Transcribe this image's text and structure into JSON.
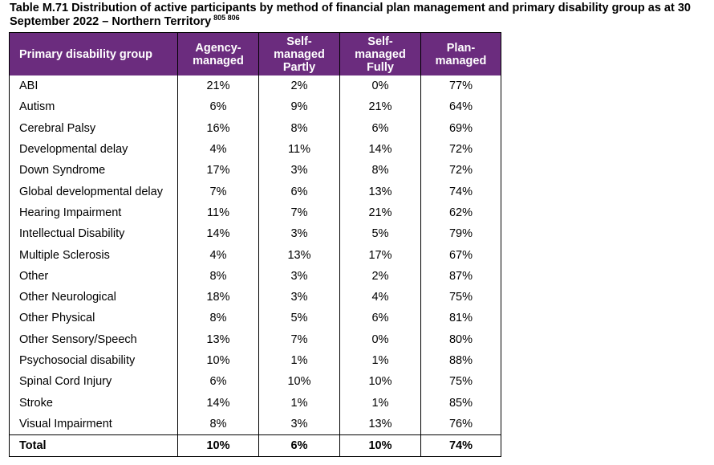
{
  "caption": {
    "text": "Table M.71 Distribution of active participants by method of financial plan management and primary disability group as at 30 September 2022 – Northern Territory",
    "footnotes": "805 806"
  },
  "table": {
    "headers": [
      [
        "Primary disability group"
      ],
      [
        "Agency-",
        "managed"
      ],
      [
        "Self-",
        "managed",
        "Partly"
      ],
      [
        "Self-",
        "managed",
        "Fully"
      ],
      [
        "Plan-",
        "managed"
      ]
    ],
    "rows": [
      [
        "ABI",
        "21%",
        "2%",
        "0%",
        "77%"
      ],
      [
        "Autism",
        "6%",
        "9%",
        "21%",
        "64%"
      ],
      [
        "Cerebral Palsy",
        "16%",
        "8%",
        "6%",
        "69%"
      ],
      [
        "Developmental delay",
        "4%",
        "11%",
        "14%",
        "72%"
      ],
      [
        "Down Syndrome",
        "17%",
        "3%",
        "8%",
        "72%"
      ],
      [
        "Global developmental delay",
        "7%",
        "6%",
        "13%",
        "74%"
      ],
      [
        "Hearing Impairment",
        "11%",
        "7%",
        "21%",
        "62%"
      ],
      [
        "Intellectual Disability",
        "14%",
        "3%",
        "5%",
        "79%"
      ],
      [
        "Multiple Sclerosis",
        "4%",
        "13%",
        "17%",
        "67%"
      ],
      [
        "Other",
        "8%",
        "3%",
        "2%",
        "87%"
      ],
      [
        "Other Neurological",
        "18%",
        "3%",
        "4%",
        "75%"
      ],
      [
        "Other Physical",
        "8%",
        "5%",
        "6%",
        "81%"
      ],
      [
        "Other Sensory/Speech",
        "13%",
        "7%",
        "0%",
        "80%"
      ],
      [
        "Psychosocial disability",
        "10%",
        "1%",
        "1%",
        "88%"
      ],
      [
        "Spinal Cord Injury",
        "6%",
        "10%",
        "10%",
        "75%"
      ],
      [
        "Stroke",
        "14%",
        "1%",
        "1%",
        "85%"
      ],
      [
        "Visual Impairment",
        "8%",
        "3%",
        "13%",
        "76%"
      ]
    ],
    "total": [
      "Total",
      "10%",
      "6%",
      "10%",
      "74%"
    ]
  },
  "colors": {
    "header_background": "#6b2c7e",
    "header_text": "#ffffff"
  }
}
